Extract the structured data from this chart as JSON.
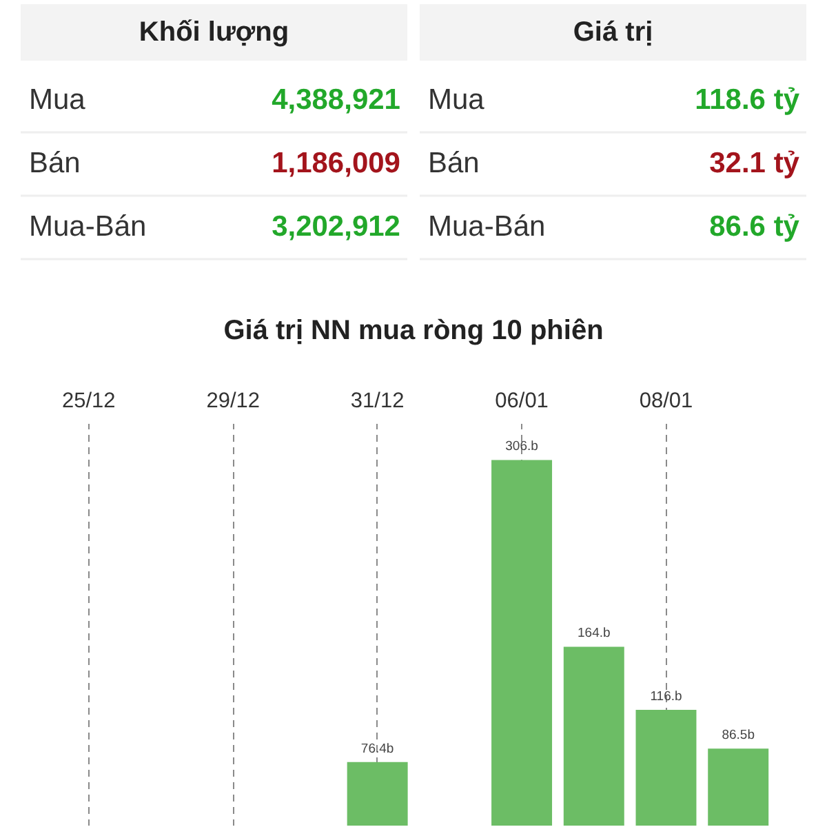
{
  "chart_data": [
    {
      "type": "other",
      "categories": [
        "Mua",
        "Bán",
        "Mua-Bán"
      ],
      "series": [
        {
          "name": "Khối lượng",
          "values": [
            4388921,
            1186009,
            3202912
          ],
          "value_labels": [
            "4,388,921",
            "1,186,009",
            "3,202,912"
          ],
          "colors": [
            "#22a82a",
            "#a3141c",
            "#22a82a"
          ]
        },
        {
          "name": "Giá trị",
          "values": [
            118.6,
            32.1,
            86.6
          ],
          "value_labels": [
            "118.6 tỷ",
            "32.1 tỷ",
            "86.6 tỷ"
          ],
          "colors": [
            "#22a82a",
            "#a3141c",
            "#22a82a"
          ]
        }
      ]
    },
    {
      "type": "bar",
      "title": "Giá trị NN mua ròng 10 phiên",
      "categories": [
        "25/12",
        null,
        "29/12",
        null,
        "31/12",
        null,
        "06/01",
        null,
        "08/01",
        null
      ],
      "values": [
        null,
        null,
        null,
        null,
        76.4,
        null,
        306,
        164,
        116,
        86.5
      ],
      "value_labels": [
        null,
        null,
        null,
        null,
        "76.4b",
        null,
        "306.b",
        "164.b",
        "116.b",
        "86.5b"
      ],
      "color": "#6cbd65",
      "ylim": [
        28,
        334
      ],
      "grid": "x",
      "tick_labels": "x"
    }
  ]
}
